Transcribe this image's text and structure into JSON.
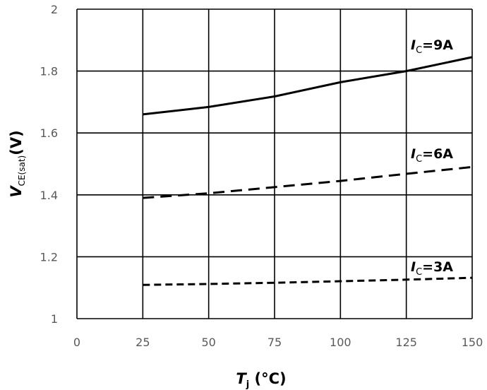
{
  "chart_data": {
    "type": "line",
    "title": "",
    "xlabel": "Tj (°C)",
    "xlabel_main": "T",
    "xlabel_sub": "j",
    "xlabel_unit": "(°C)",
    "ylabel": "VCE(sat)(V)",
    "ylabel_main": "V",
    "ylabel_sub": "CE(sat)",
    "ylabel_unit": "(V)",
    "xlim": [
      0,
      150
    ],
    "ylim": [
      1,
      2
    ],
    "x_ticks": [
      "0",
      "25",
      "50",
      "75",
      "100",
      "125",
      "150"
    ],
    "y_ticks": [
      "1",
      "1.2",
      "1.4",
      "1.6",
      "1.8",
      "2"
    ],
    "grid": true,
    "x": [
      25,
      50,
      75,
      100,
      125,
      150
    ],
    "series": [
      {
        "name": "IC=9A",
        "label_main": "I",
        "label_sub": "C",
        "label_rest": "=9A",
        "style": "solid",
        "values": [
          1.66,
          1.684,
          1.718,
          1.764,
          1.8,
          1.845
        ]
      },
      {
        "name": "IC=6A",
        "label_main": "I",
        "label_sub": "C",
        "label_rest": "=6A",
        "style": "dashed",
        "values": [
          1.39,
          1.405,
          1.425,
          1.445,
          1.468,
          1.49
        ]
      },
      {
        "name": "IC=3A",
        "label_main": "I",
        "label_sub": "C",
        "label_rest": "=3A",
        "style": "dotted-dash",
        "values": [
          1.109,
          1.112,
          1.116,
          1.121,
          1.126,
          1.132
        ]
      }
    ]
  }
}
